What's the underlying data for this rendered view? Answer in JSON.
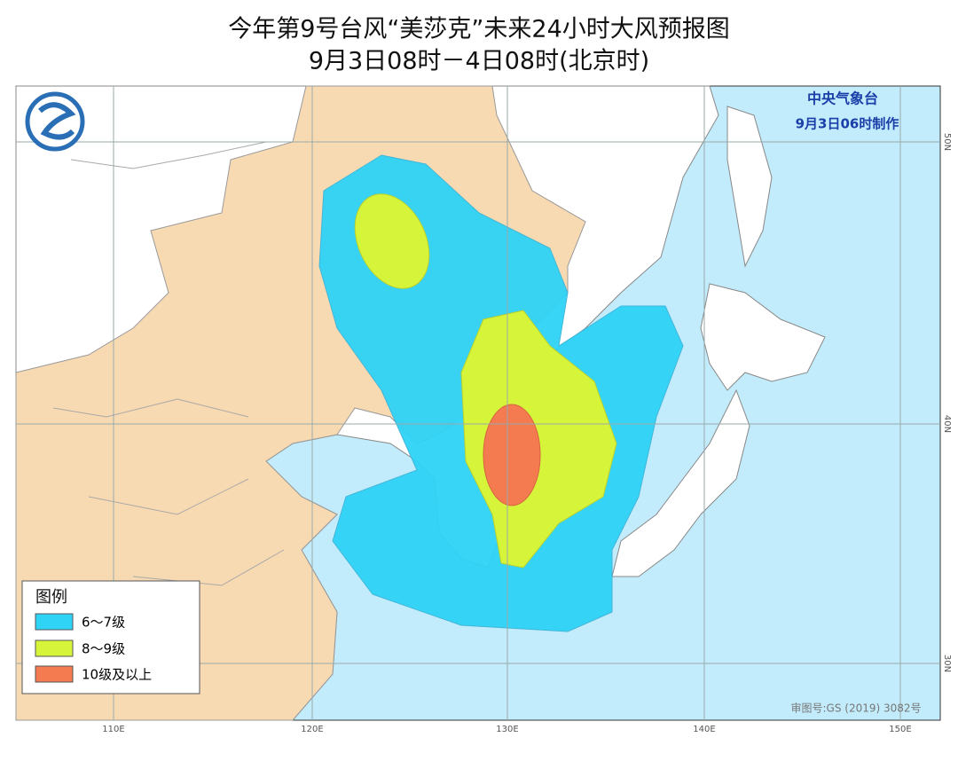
{
  "header": {
    "title": "今年第9号台风“美莎克”未来24小时大风预报图",
    "subtitle": "9月3日08时－4日08时(北京时)"
  },
  "agency": {
    "name": "中央气象台",
    "issued": "9月3日06时制作"
  },
  "legend": {
    "title": "图例",
    "items": [
      {
        "label": "6～7级",
        "color": "#2ed3f6"
      },
      {
        "label": "8～9级",
        "color": "#d6f53a"
      },
      {
        "label": "10级及以上",
        "color": "#f47a50"
      }
    ]
  },
  "grid": {
    "longitudes": [
      "110E",
      "120E",
      "130E",
      "140E",
      "150E"
    ],
    "latitudes": [
      "50N",
      "40N",
      "30N"
    ]
  },
  "credit": "审图号:GS (2019) 3082号"
}
